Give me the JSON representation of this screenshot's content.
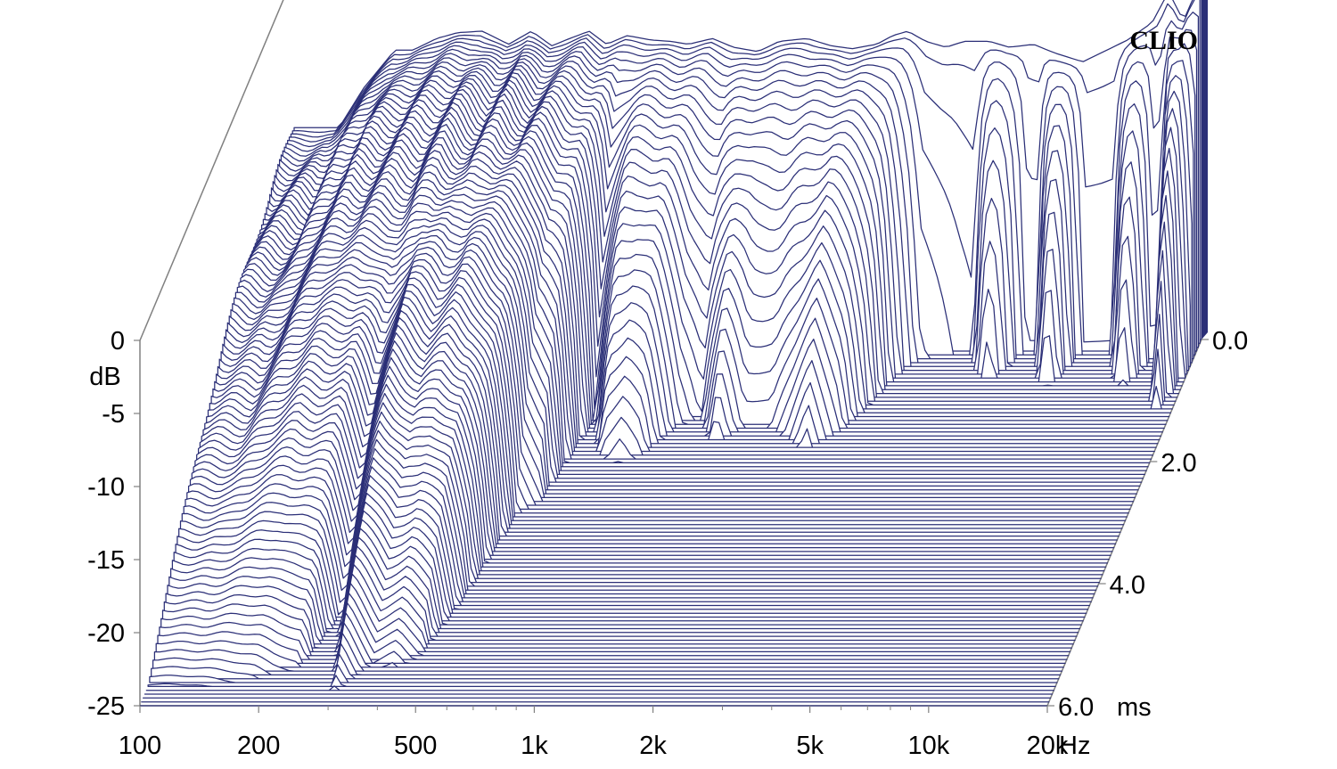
{
  "chart_data": {
    "type": "waterfall",
    "title": "",
    "brand": "CLIO",
    "colors": {
      "trace": "#2b2f77",
      "axis": "#808080",
      "background": "#ffffff"
    },
    "x_axis": {
      "scale": "log",
      "range_hz": [
        100,
        20000
      ],
      "unit": "Hz",
      "ticks": [
        {
          "value": 100,
          "label": "100"
        },
        {
          "value": 200,
          "label": "200"
        },
        {
          "value": 500,
          "label": "500"
        },
        {
          "value": 1000,
          "label": "1k"
        },
        {
          "value": 2000,
          "label": "2k"
        },
        {
          "value": 5000,
          "label": "5k"
        },
        {
          "value": 10000,
          "label": "10k"
        },
        {
          "value": 20000,
          "label": "20k"
        }
      ]
    },
    "y_axis": {
      "unit": "dB",
      "range": [
        -25,
        0
      ],
      "ticks": [
        {
          "value": 0,
          "label": "0"
        },
        {
          "value": -5,
          "label": "-5"
        },
        {
          "value": -10,
          "label": "-10"
        },
        {
          "value": -15,
          "label": "-15"
        },
        {
          "value": -20,
          "label": "-20"
        },
        {
          "value": -25,
          "label": "-25"
        }
      ]
    },
    "t_axis": {
      "unit": "ms",
      "range": [
        0,
        6
      ],
      "ticks": [
        {
          "value": 0,
          "label": "0.0"
        },
        {
          "value": 2,
          "label": "2.0"
        },
        {
          "value": 4,
          "label": "4.0"
        },
        {
          "value": 6,
          "label": "6.0"
        }
      ]
    },
    "slices": 96,
    "first_slice_response": {
      "freq_hz": [
        100,
        115,
        130,
        150,
        180,
        200,
        230,
        260,
        300,
        350,
        400,
        450,
        500,
        560,
        620,
        700,
        800,
        900,
        1000,
        1150,
        1300,
        1500,
        1700,
        2000,
        2300,
        2600,
        3000,
        3300,
        3600,
        4000,
        4500,
        5000,
        5800,
        6500,
        7500,
        8500,
        10000,
        11500,
        13000,
        15000,
        16500,
        18000,
        19000,
        19800
      ],
      "db": [
        -10.5,
        -10.5,
        -10.5,
        -7.8,
        -5.2,
        -5.2,
        -4.4,
        -4.0,
        -3.9,
        -4.8,
        -3.9,
        -4.9,
        -4.4,
        -3.9,
        -4.8,
        -4.2,
        -4.5,
        -4.6,
        -4.8,
        -4.4,
        -5.0,
        -5.3,
        -4.6,
        -4.4,
        -4.9,
        -5.1,
        -4.8,
        -4.2,
        -3.9,
        -4.6,
        -5.0,
        -4.6,
        -4.6,
        -5.0,
        -4.8,
        -5.4,
        -6.0,
        -5.2,
        -4.5,
        -3.3,
        -1.2,
        -3.2,
        -1.7,
        -0.8
      ]
    },
    "decay_ms": {
      "freq_hz": [
        100,
        130,
        150,
        180,
        200,
        230,
        260,
        300,
        350,
        400,
        450,
        500,
        560,
        620,
        700,
        800,
        900,
        1000,
        1150,
        1300,
        1500,
        1700,
        2000,
        2300,
        2600,
        3000,
        3300,
        3600,
        4000,
        4500,
        5000,
        5800,
        6500,
        7500,
        8500,
        10000,
        11500,
        13000,
        15000,
        16500,
        18000,
        19000,
        19800
      ],
      "t_ms": [
        6.0,
        6.0,
        5.9,
        5.8,
        5.7,
        5.6,
        4.6,
        6.0,
        5.5,
        5.6,
        5.4,
        4.5,
        3.0,
        2.8,
        1.3,
        2.0,
        2.1,
        2.0,
        1.5,
        1.3,
        1.8,
        1.5,
        1.5,
        1.7,
        1.9,
        1.6,
        1.2,
        0.7,
        0.35,
        0.3,
        0.25,
        0.2,
        0.2,
        0.2,
        0.2,
        0.2,
        0.2,
        0.2,
        0.2,
        0.4,
        1.3,
        0.9,
        0.5
      ]
    }
  }
}
